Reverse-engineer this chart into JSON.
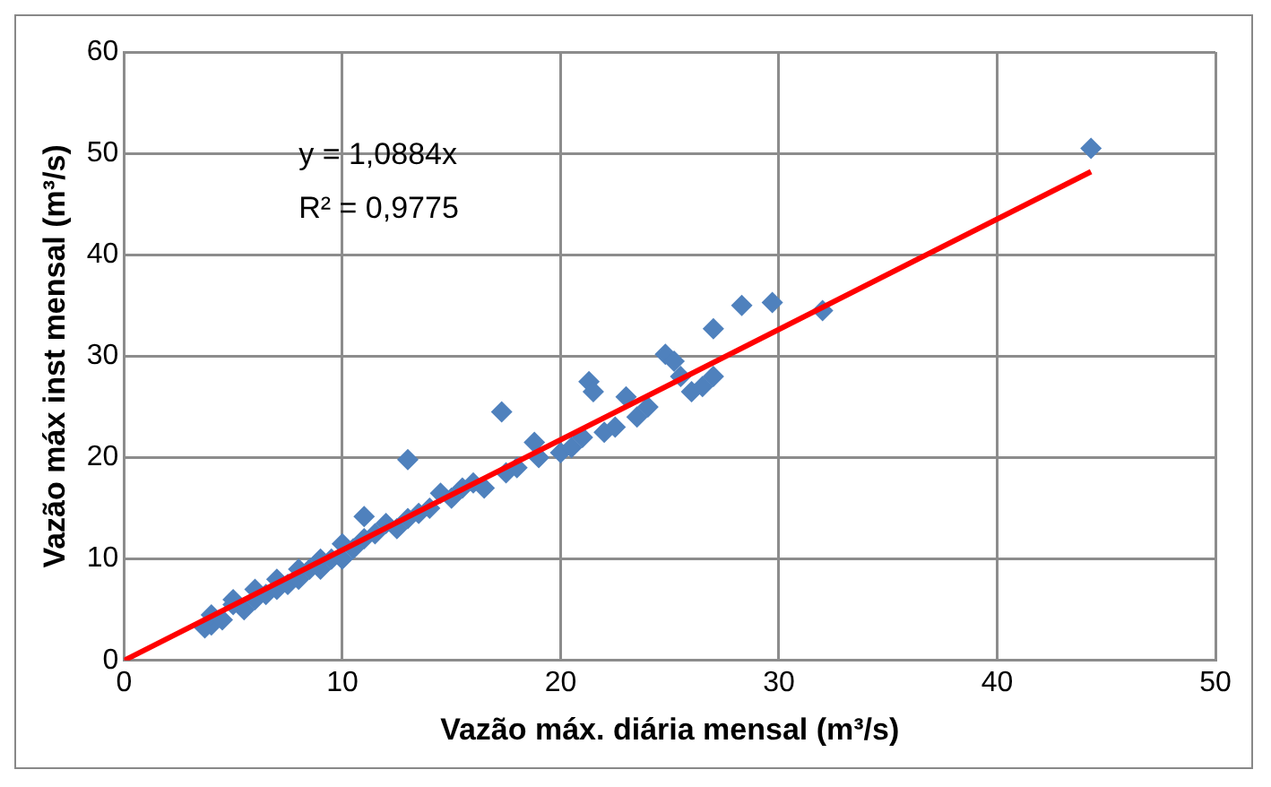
{
  "chart_data": {
    "type": "scatter",
    "xlabel": "Vazão máx. diária mensal (m³/s)",
    "ylabel": "Vazão máx inst mensal (m³/s)",
    "xlim": [
      0,
      50
    ],
    "xticks": [
      0,
      10,
      20,
      30,
      40,
      50
    ],
    "ylim": [
      0,
      60
    ],
    "yticks": [
      0,
      10,
      20,
      30,
      40,
      50,
      60
    ],
    "grid": true,
    "marker": "diamond",
    "annotations": [
      "y = 1,0884x",
      "R² = 0,9775"
    ],
    "series": [
      {
        "type": "scatter",
        "color": "#4f81bd",
        "x": [
          3.7,
          4,
          4,
          4.5,
          5,
          5,
          5.5,
          6,
          6,
          6.5,
          7,
          7,
          7.5,
          8,
          8,
          8.5,
          9,
          9,
          9.5,
          10,
          10,
          10.5,
          11,
          11,
          11.5,
          12,
          12.5,
          13,
          13,
          13.5,
          14,
          14.5,
          15,
          15.5,
          16,
          16.5,
          17.3,
          17.5,
          18,
          18.8,
          19,
          20,
          20.5,
          21,
          21.3,
          21.5,
          22,
          22.5,
          23,
          23.5,
          24,
          24.8,
          25.2,
          25.5,
          26,
          26.5,
          27,
          27,
          28.3,
          29.7,
          32,
          44.3
        ],
        "values": [
          3.2,
          3.5,
          4.5,
          4,
          5.5,
          6,
          5,
          6,
          7,
          6.5,
          7,
          8,
          7.5,
          8,
          9,
          9,
          9,
          10,
          10,
          10,
          11.5,
          11,
          12,
          14.2,
          12.5,
          13.5,
          13,
          14,
          19.8,
          14.5,
          15,
          16.5,
          16,
          17,
          17.5,
          17,
          24.5,
          18.5,
          19,
          21.5,
          20,
          20.5,
          21,
          22,
          27.5,
          26.5,
          22.5,
          23,
          26,
          24,
          25,
          30.2,
          29.5,
          28,
          26.5,
          27,
          28,
          32.7,
          35,
          35.3,
          34.5,
          50.5
        ]
      },
      {
        "type": "line",
        "color": "#ff0000",
        "marker": "none",
        "x": [
          0,
          44.3
        ],
        "values": [
          0,
          48.2
        ]
      }
    ]
  }
}
